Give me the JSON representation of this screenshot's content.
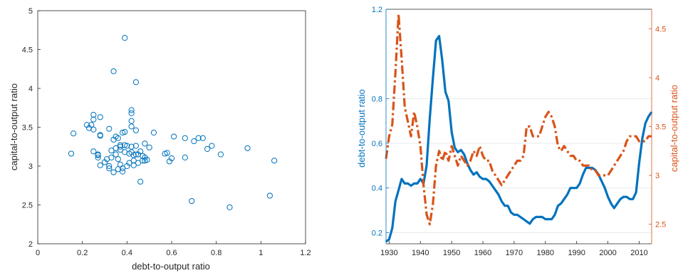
{
  "chart_data": [
    {
      "type": "scatter",
      "xlabel": "debt-to-output ratio",
      "ylabel": "capital-to-output ratio",
      "xlim": [
        0,
        1.2
      ],
      "ylim": [
        2,
        5
      ],
      "xticks": [
        0,
        0.2,
        0.4,
        0.6,
        0.8,
        1,
        1.2
      ],
      "xtick_labels": [
        "0",
        "0.2",
        "0.4",
        "0.6",
        "0.8",
        "1",
        "1.2"
      ],
      "yticks": [
        2,
        2.5,
        3,
        3.5,
        4,
        4.5,
        5
      ],
      "ytick_labels": [
        "2",
        "2.5",
        "3",
        "3.5",
        "4",
        "4.5",
        "5"
      ],
      "grid": false,
      "marker_color": "#0072bd",
      "points": [
        [
          0.15,
          3.16
        ],
        [
          0.16,
          3.42
        ],
        [
          0.22,
          3.53
        ],
        [
          0.23,
          3.49
        ],
        [
          0.24,
          3.53
        ],
        [
          0.25,
          3.6
        ],
        [
          0.25,
          3.66
        ],
        [
          0.25,
          3.47
        ],
        [
          0.25,
          3.19
        ],
        [
          0.27,
          3.15
        ],
        [
          0.27,
          3.14
        ],
        [
          0.27,
          3.11
        ],
        [
          0.28,
          3.4
        ],
        [
          0.28,
          3.39
        ],
        [
          0.28,
          3.63
        ],
        [
          0.28,
          3.01
        ],
        [
          0.3,
          3.05
        ],
        [
          0.31,
          3.09
        ],
        [
          0.32,
          2.97
        ],
        [
          0.32,
          3.48
        ],
        [
          0.32,
          3.0
        ],
        [
          0.33,
          3.11
        ],
        [
          0.33,
          3.2
        ],
        [
          0.34,
          4.22
        ],
        [
          0.34,
          2.92
        ],
        [
          0.34,
          3.34
        ],
        [
          0.35,
          3.38
        ],
        [
          0.35,
          3.23
        ],
        [
          0.35,
          3.15
        ],
        [
          0.36,
          3.36
        ],
        [
          0.36,
          3.09
        ],
        [
          0.36,
          2.96
        ],
        [
          0.37,
          3.27
        ],
        [
          0.37,
          3.25
        ],
        [
          0.37,
          3.21
        ],
        [
          0.37,
          3.02
        ],
        [
          0.38,
          2.93
        ],
        [
          0.38,
          3.43
        ],
        [
          0.38,
          2.97
        ],
        [
          0.39,
          4.65
        ],
        [
          0.39,
          3.44
        ],
        [
          0.39,
          3.27
        ],
        [
          0.39,
          3.18
        ],
        [
          0.4,
          3.26
        ],
        [
          0.4,
          3.0
        ],
        [
          0.41,
          3.16
        ],
        [
          0.41,
          3.04
        ],
        [
          0.42,
          3.72
        ],
        [
          0.42,
          3.68
        ],
        [
          0.42,
          3.58
        ],
        [
          0.42,
          3.51
        ],
        [
          0.42,
          3.25
        ],
        [
          0.42,
          3.18
        ],
        [
          0.43,
          3.14
        ],
        [
          0.43,
          3.07
        ],
        [
          0.43,
          3.01
        ],
        [
          0.44,
          4.08
        ],
        [
          0.44,
          3.46
        ],
        [
          0.44,
          3.26
        ],
        [
          0.44,
          3.15
        ],
        [
          0.45,
          3.15
        ],
        [
          0.45,
          3.04
        ],
        [
          0.46,
          2.8
        ],
        [
          0.46,
          3.19
        ],
        [
          0.47,
          3.13
        ],
        [
          0.47,
          3.07
        ],
        [
          0.48,
          3.29
        ],
        [
          0.48,
          3.11
        ],
        [
          0.48,
          3.07
        ],
        [
          0.49,
          3.08
        ],
        [
          0.5,
          3.24
        ],
        [
          0.52,
          3.43
        ],
        [
          0.57,
          3.16
        ],
        [
          0.58,
          3.17
        ],
        [
          0.59,
          3.06
        ],
        [
          0.6,
          3.1
        ],
        [
          0.61,
          3.38
        ],
        [
          0.66,
          3.36
        ],
        [
          0.66,
          3.11
        ],
        [
          0.69,
          2.55
        ],
        [
          0.7,
          3.32
        ],
        [
          0.72,
          3.36
        ],
        [
          0.74,
          3.36
        ],
        [
          0.76,
          3.22
        ],
        [
          0.78,
          3.26
        ],
        [
          0.82,
          3.15
        ],
        [
          0.86,
          2.47
        ],
        [
          0.94,
          3.23
        ],
        [
          1.04,
          2.62
        ],
        [
          1.06,
          3.07
        ]
      ]
    },
    {
      "type": "line",
      "xlim": [
        1929,
        2014
      ],
      "xticks": [
        1930,
        1940,
        1950,
        1960,
        1970,
        1980,
        1990,
        2000,
        2010
      ],
      "xtick_labels": [
        "1930",
        "1940",
        "1950",
        "1960",
        "1970",
        "1980",
        "1990",
        "2000",
        "2010"
      ],
      "ylabel_left": "debt-to-output ratio",
      "ylim_left": [
        0.15,
        1.2
      ],
      "yticks_left": [
        0.2,
        0.4,
        0.6,
        0.8,
        1.2
      ],
      "ytick_labels_left": [
        "0.2",
        "0.4",
        "0.6",
        "0.8",
        "1.2"
      ],
      "ylabel_right": "capital-to-output ratio",
      "ylim_right": [
        2.3,
        4.7
      ],
      "yticks_right": [
        2.5,
        3,
        3.5,
        4,
        4.5
      ],
      "ytick_labels_right": [
        "2.5",
        "3",
        "3.5",
        "4",
        "4.5"
      ],
      "grid": "horizontal",
      "left_color": "#0072bd",
      "right_color": "#d95319",
      "series": [
        {
          "axis": "left",
          "style": "solid",
          "color": "#0072bd",
          "x": [
            1929,
            1930,
            1931,
            1932,
            1933,
            1934,
            1935,
            1936,
            1937,
            1938,
            1939,
            1940,
            1941,
            1942,
            1943,
            1944,
            1945,
            1946,
            1947,
            1948,
            1949,
            1950,
            1951,
            1952,
            1953,
            1954,
            1955,
            1956,
            1957,
            1958,
            1959,
            1960,
            1961,
            1962,
            1963,
            1964,
            1965,
            1966,
            1967,
            1968,
            1969,
            1970,
            1971,
            1972,
            1973,
            1974,
            1975,
            1976,
            1977,
            1978,
            1979,
            1980,
            1981,
            1982,
            1983,
            1984,
            1985,
            1986,
            1987,
            1988,
            1989,
            1990,
            1991,
            1992,
            1993,
            1994,
            1995,
            1996,
            1997,
            1998,
            1999,
            2000,
            2001,
            2002,
            2003,
            2004,
            2005,
            2006,
            2007,
            2008,
            2009,
            2010,
            2011,
            2012,
            2013,
            2014
          ],
          "values": [
            0.16,
            0.17,
            0.22,
            0.34,
            0.39,
            0.44,
            0.42,
            0.42,
            0.41,
            0.42,
            0.42,
            0.44,
            0.42,
            0.5,
            0.71,
            0.89,
            1.06,
            1.08,
            0.97,
            0.83,
            0.79,
            0.65,
            0.58,
            0.56,
            0.57,
            0.55,
            0.51,
            0.48,
            0.46,
            0.47,
            0.45,
            0.44,
            0.44,
            0.43,
            0.41,
            0.39,
            0.37,
            0.34,
            0.32,
            0.32,
            0.29,
            0.28,
            0.28,
            0.27,
            0.26,
            0.25,
            0.24,
            0.26,
            0.27,
            0.27,
            0.27,
            0.26,
            0.26,
            0.26,
            0.28,
            0.32,
            0.33,
            0.35,
            0.37,
            0.4,
            0.4,
            0.4,
            0.42,
            0.46,
            0.49,
            0.49,
            0.49,
            0.48,
            0.46,
            0.43,
            0.4,
            0.36,
            0.33,
            0.31,
            0.33,
            0.35,
            0.36,
            0.36,
            0.35,
            0.35,
            0.38,
            0.51,
            0.62,
            0.69,
            0.72,
            0.74
          ]
        },
        {
          "axis": "right",
          "style": "dashdot",
          "color": "#d95319",
          "x": [
            1929,
            1930,
            1931,
            1932,
            1933,
            1934,
            1935,
            1936,
            1937,
            1938,
            1939,
            1940,
            1941,
            1942,
            1943,
            1944,
            1945,
            1946,
            1947,
            1948,
            1949,
            1950,
            1951,
            1952,
            1953,
            1954,
            1955,
            1956,
            1957,
            1958,
            1959,
            1960,
            1961,
            1962,
            1963,
            1964,
            1965,
            1966,
            1967,
            1968,
            1969,
            1970,
            1971,
            1972,
            1973,
            1974,
            1975,
            1976,
            1977,
            1978,
            1979,
            1980,
            1981,
            1982,
            1983,
            1984,
            1985,
            1986,
            1987,
            1988,
            1989,
            1990,
            1991,
            1992,
            1993,
            1994,
            1995,
            1996,
            1997,
            1998,
            1999,
            2000,
            2001,
            2002,
            2003,
            2004,
            2005,
            2006,
            2007,
            2008,
            2009,
            2010,
            2011,
            2012,
            2013,
            2014
          ],
          "values": [
            3.17,
            3.4,
            3.52,
            4.05,
            4.65,
            4.2,
            3.7,
            3.55,
            3.4,
            3.65,
            3.5,
            3.3,
            2.9,
            2.6,
            2.5,
            2.7,
            3.1,
            3.25,
            3.15,
            3.25,
            3.15,
            3.3,
            3.2,
            3.1,
            3.2,
            3.15,
            3.1,
            3.15,
            3.25,
            3.2,
            3.3,
            3.2,
            3.15,
            3.15,
            3.05,
            3.0,
            2.95,
            2.9,
            2.95,
            3.0,
            3.05,
            3.1,
            3.15,
            3.15,
            3.2,
            3.5,
            3.5,
            3.4,
            3.4,
            3.4,
            3.5,
            3.6,
            3.65,
            3.6,
            3.5,
            3.3,
            3.25,
            3.3,
            3.25,
            3.2,
            3.2,
            3.15,
            3.15,
            3.1,
            3.1,
            3.1,
            3.05,
            3.05,
            3.0,
            3.0,
            3.0,
            3.0,
            3.05,
            3.1,
            3.15,
            3.2,
            3.25,
            3.35,
            3.4,
            3.4,
            3.4,
            3.35,
            3.35,
            3.35,
            3.4,
            3.4
          ]
        }
      ]
    }
  ]
}
